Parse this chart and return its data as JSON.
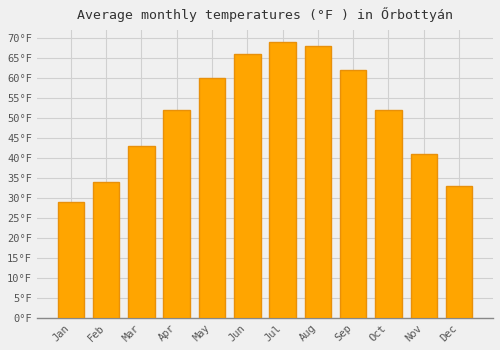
{
  "months": [
    "Jan",
    "Feb",
    "Mar",
    "Apr",
    "May",
    "Jun",
    "Jul",
    "Aug",
    "Sep",
    "Oct",
    "Nov",
    "Dec"
  ],
  "values": [
    29,
    34,
    43,
    52,
    60,
    66,
    69,
    68,
    62,
    52,
    41,
    33
  ],
  "bar_color_inner": "#FFA500",
  "bar_color_edge": "#E8900A",
  "title": "Average monthly temperatures (°F ) in Őrbottyán",
  "ylim": [
    0,
    72
  ],
  "ytick_step": 5,
  "background_color": "#f0f0f0",
  "grid_color": "#d0d0d0",
  "title_fontsize": 9.5,
  "tick_fontsize": 7.5,
  "bar_width": 0.75
}
